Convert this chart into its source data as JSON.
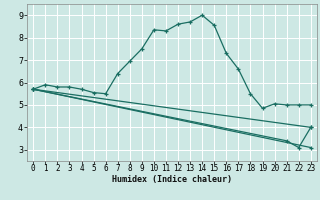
{
  "xlabel": "Humidex (Indice chaleur)",
  "background_color": "#cde8e4",
  "grid_color": "#ffffff",
  "line_color": "#1a6e62",
  "series": [
    {
      "x": [
        0,
        1,
        2,
        3,
        4,
        5,
        6,
        7,
        8,
        9,
        10,
        11,
        12,
        13,
        14,
        15,
        16,
        17,
        18,
        19,
        20,
        21,
        22,
        23
      ],
      "y": [
        5.7,
        5.9,
        5.8,
        5.8,
        5.7,
        5.55,
        5.5,
        6.4,
        6.95,
        7.5,
        8.35,
        8.3,
        8.6,
        8.7,
        9.0,
        8.55,
        7.3,
        6.6,
        5.5,
        4.85,
        5.05,
        5.0,
        5.0,
        5.0
      ]
    },
    {
      "x": [
        0,
        23
      ],
      "y": [
        5.7,
        4.0
      ]
    },
    {
      "x": [
        0,
        23
      ],
      "y": [
        5.7,
        3.1
      ]
    },
    {
      "x": [
        0,
        21,
        22,
        23
      ],
      "y": [
        5.7,
        3.4,
        3.1,
        4.0
      ]
    }
  ],
  "xlim": [
    -0.5,
    23.5
  ],
  "ylim": [
    2.5,
    9.5
  ],
  "yticks": [
    3,
    4,
    5,
    6,
    7,
    8,
    9
  ],
  "xticks": [
    0,
    1,
    2,
    3,
    4,
    5,
    6,
    7,
    8,
    9,
    10,
    11,
    12,
    13,
    14,
    15,
    16,
    17,
    18,
    19,
    20,
    21,
    22,
    23
  ],
  "xlabel_fontsize": 6.0,
  "tick_fontsize": 5.5,
  "marker_size": 3.0,
  "line_width": 0.9
}
